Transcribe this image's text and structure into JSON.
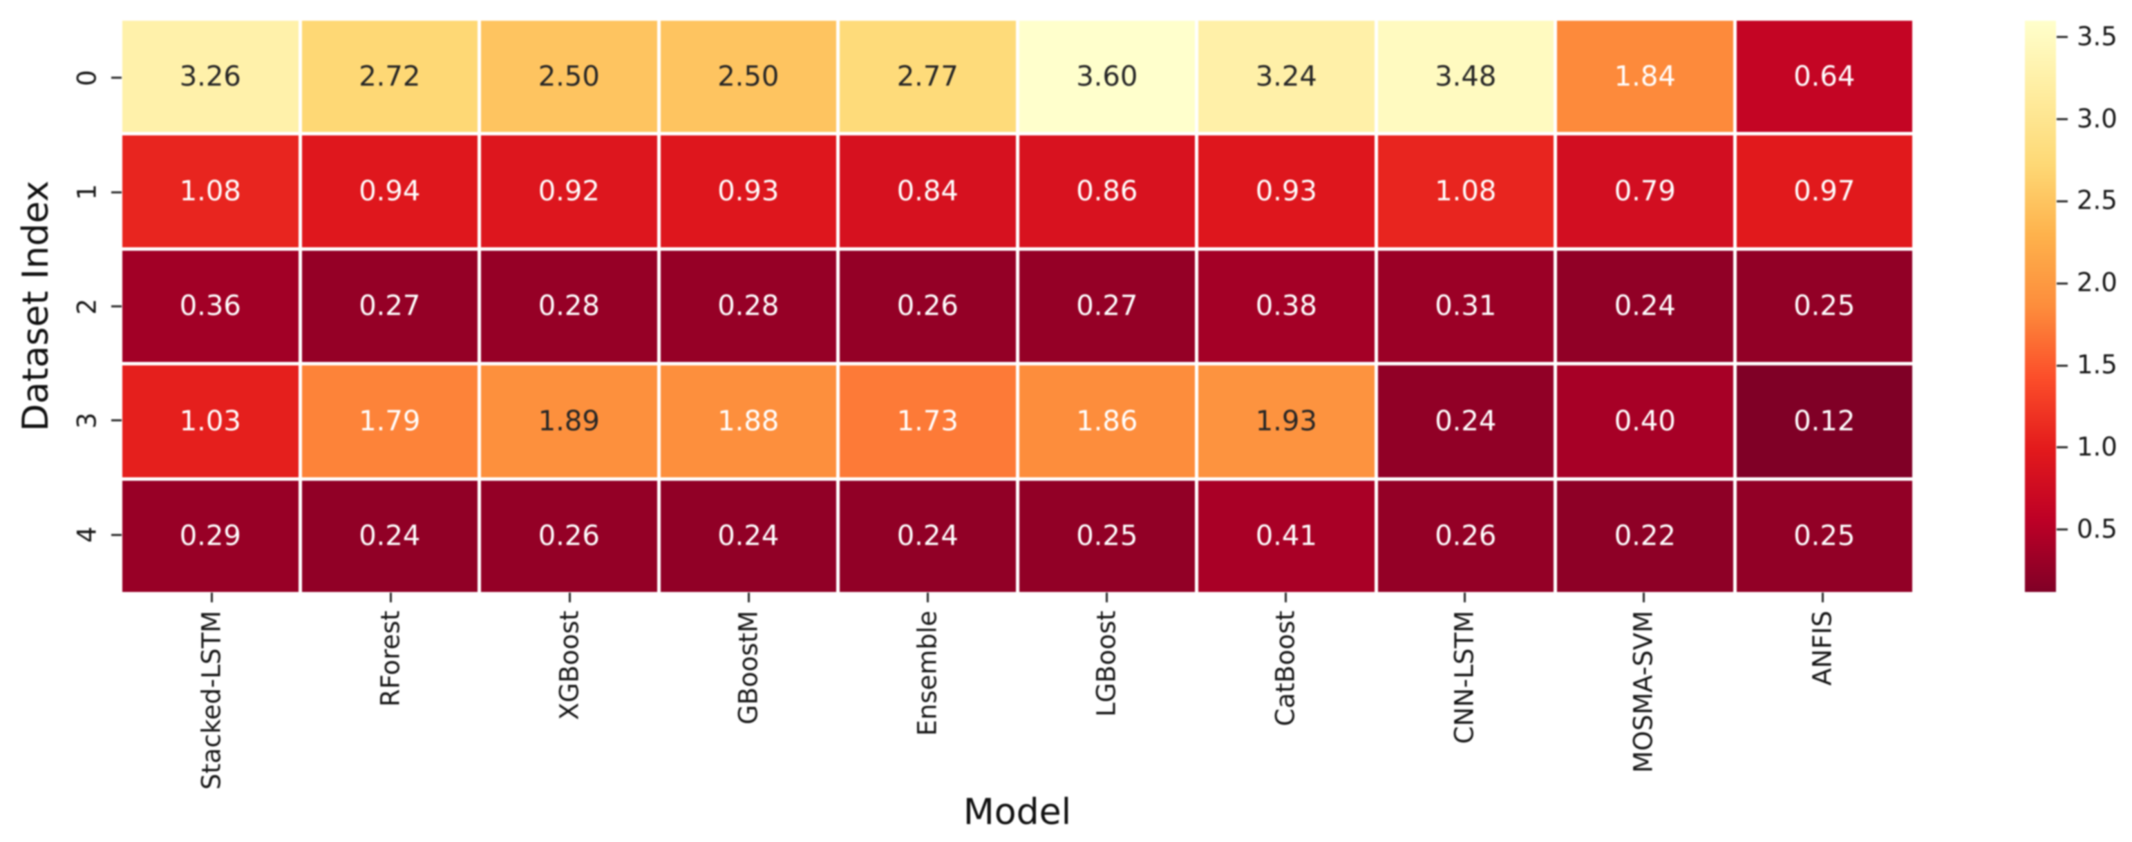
{
  "chart_data": {
    "type": "heatmap",
    "title": "",
    "xlabel": "Model",
    "ylabel": "Dataset Index",
    "x_categories": [
      "Stacked-LSTM",
      "RForest",
      "XGBoost",
      "GBoostM",
      "Ensemble",
      "LGBoost",
      "CatBoost",
      "CNN-LSTM",
      "MOSMA-SVM",
      "ANFIS"
    ],
    "y_categories": [
      "0",
      "1",
      "2",
      "3",
      "4"
    ],
    "values": [
      [
        3.26,
        2.72,
        2.5,
        2.5,
        2.77,
        3.6,
        3.24,
        3.48,
        1.84,
        0.64
      ],
      [
        1.08,
        0.94,
        0.92,
        0.93,
        0.84,
        0.86,
        0.93,
        1.08,
        0.79,
        0.97
      ],
      [
        0.36,
        0.27,
        0.28,
        0.28,
        0.26,
        0.27,
        0.38,
        0.31,
        0.24,
        0.25
      ],
      [
        1.03,
        1.79,
        1.89,
        1.88,
        1.73,
        1.86,
        1.93,
        0.24,
        0.4,
        0.12
      ],
      [
        0.29,
        0.24,
        0.26,
        0.24,
        0.24,
        0.25,
        0.41,
        0.26,
        0.22,
        0.25
      ]
    ],
    "value_format_decimals": 2,
    "vmin": 0.12,
    "vmax": 3.6,
    "colormap": "YlOrRd_r",
    "colormap_stops": [
      "#ffffcc",
      "#ffeda0",
      "#fed976",
      "#feb24c",
      "#fd8d3c",
      "#fc4e2a",
      "#e31a1c",
      "#bd0026",
      "#800026"
    ],
    "colorbar_ticks": [
      3.5,
      3.0,
      2.5,
      2.0,
      1.5,
      1.0,
      0.5
    ],
    "colorbar_tick_labels": [
      "3.5",
      "3.0",
      "2.5",
      "2.0",
      "1.5",
      "1.0",
      "0.5"
    ],
    "annotation_dark_color": "#262626",
    "annotation_light_color": "#ffffff",
    "annotation_luminance_threshold": 0.409,
    "grid_line_color": "#ffffff",
    "legend_position": "right-colorbar",
    "grid": "off"
  }
}
